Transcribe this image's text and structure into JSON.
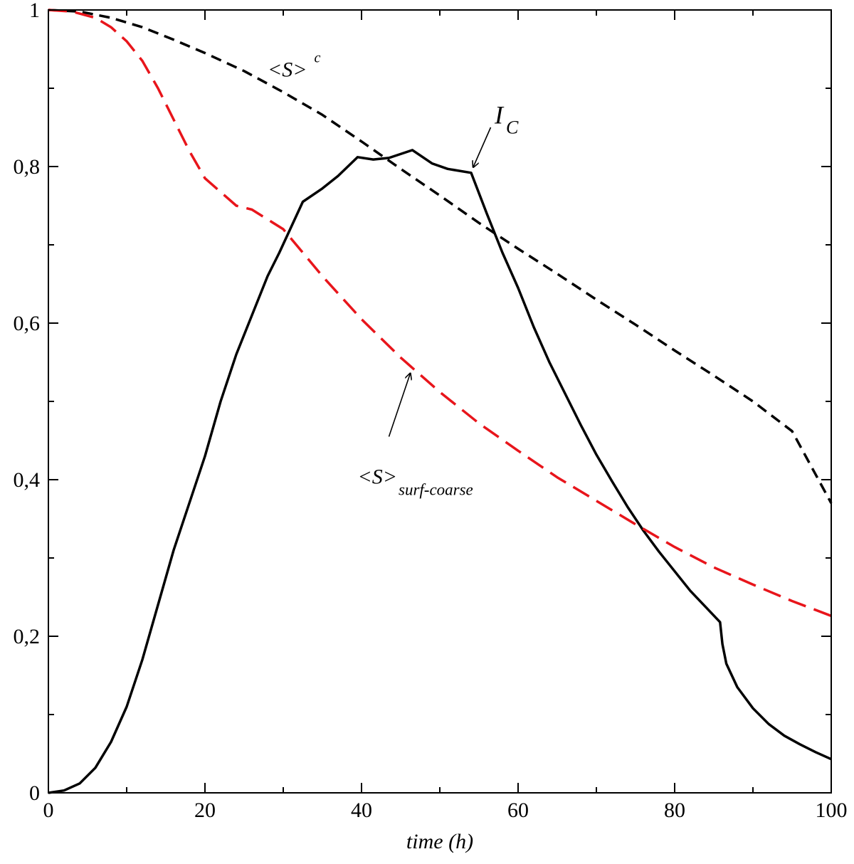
{
  "chart_data": {
    "type": "line",
    "xlabel": "time (h)",
    "ylabel": "",
    "xlim": [
      0,
      100
    ],
    "ylim": [
      0,
      1
    ],
    "grid": false,
    "x_ticks": [
      {
        "value": 0,
        "label": "0"
      },
      {
        "value": 20,
        "label": "20"
      },
      {
        "value": 40,
        "label": "40"
      },
      {
        "value": 60,
        "label": "60"
      },
      {
        "value": 80,
        "label": "80"
      },
      {
        "value": 100,
        "label": "100"
      }
    ],
    "x_minor_ticks": [
      10,
      30,
      50,
      70,
      90
    ],
    "y_ticks": [
      {
        "value": 0,
        "label": "0"
      },
      {
        "value": 0.2,
        "label": "0,2"
      },
      {
        "value": 0.4,
        "label": "0,4"
      },
      {
        "value": 0.6,
        "label": "0,6"
      },
      {
        "value": 0.8,
        "label": "0,8"
      },
      {
        "value": 1,
        "label": "1"
      }
    ],
    "y_minor_ticks": [
      0.1,
      0.3,
      0.5,
      0.7,
      0.9
    ],
    "series": [
      {
        "key": "ic",
        "color": "#000000",
        "style": "solid",
        "points": [
          [
            0,
            0.0
          ],
          [
            2,
            0.003
          ],
          [
            4,
            0.012
          ],
          [
            6,
            0.032
          ],
          [
            8,
            0.065
          ],
          [
            10,
            0.11
          ],
          [
            12,
            0.17
          ],
          [
            14,
            0.24
          ],
          [
            16,
            0.31
          ],
          [
            18,
            0.37
          ],
          [
            20,
            0.43
          ],
          [
            22,
            0.5
          ],
          [
            24,
            0.56
          ],
          [
            26,
            0.61
          ],
          [
            28,
            0.66
          ],
          [
            29.5,
            0.69
          ],
          [
            32.5,
            0.755
          ],
          [
            35,
            0.772
          ],
          [
            37,
            0.788
          ],
          [
            39.5,
            0.812
          ],
          [
            41.5,
            0.809
          ],
          [
            43.5,
            0.811
          ],
          [
            46.5,
            0.821
          ],
          [
            49,
            0.804
          ],
          [
            51,
            0.797
          ],
          [
            54,
            0.792
          ],
          [
            56,
            0.74
          ],
          [
            58,
            0.69
          ],
          [
            60,
            0.645
          ],
          [
            62,
            0.595
          ],
          [
            64,
            0.55
          ],
          [
            66,
            0.51
          ],
          [
            68,
            0.47
          ],
          [
            70,
            0.432
          ],
          [
            72,
            0.398
          ],
          [
            74,
            0.365
          ],
          [
            76,
            0.335
          ],
          [
            78,
            0.308
          ],
          [
            80,
            0.283
          ],
          [
            82,
            0.258
          ],
          [
            84,
            0.237
          ],
          [
            85.8,
            0.218
          ],
          [
            86.1,
            0.19
          ],
          [
            86.6,
            0.165
          ],
          [
            88,
            0.135
          ],
          [
            90,
            0.108
          ],
          [
            92,
            0.088
          ],
          [
            94,
            0.073
          ],
          [
            96,
            0.062
          ],
          [
            98,
            0.052
          ],
          [
            100,
            0.043
          ]
        ]
      },
      {
        "key": "s_c",
        "color": "#000000",
        "style": "dashed",
        "points": [
          [
            0,
            1.0
          ],
          [
            4,
            0.998
          ],
          [
            8,
            0.99
          ],
          [
            12,
            0.978
          ],
          [
            16,
            0.962
          ],
          [
            20,
            0.945
          ],
          [
            25,
            0.922
          ],
          [
            30,
            0.895
          ],
          [
            35,
            0.866
          ],
          [
            40,
            0.832
          ],
          [
            45,
            0.797
          ],
          [
            50,
            0.763
          ],
          [
            55,
            0.728
          ],
          [
            60,
            0.695
          ],
          [
            65,
            0.663
          ],
          [
            70,
            0.63
          ],
          [
            75,
            0.598
          ],
          [
            80,
            0.565
          ],
          [
            85,
            0.533
          ],
          [
            90,
            0.5
          ],
          [
            95,
            0.462
          ],
          [
            100,
            0.37
          ]
        ]
      },
      {
        "key": "s_surf",
        "color": "#e8151b",
        "style": "dashed",
        "points": [
          [
            0,
            1.0
          ],
          [
            3,
            0.998
          ],
          [
            6,
            0.99
          ],
          [
            8,
            0.978
          ],
          [
            10,
            0.96
          ],
          [
            12,
            0.935
          ],
          [
            14,
            0.9
          ],
          [
            16,
            0.86
          ],
          [
            18,
            0.82
          ],
          [
            20,
            0.785
          ],
          [
            24,
            0.75
          ],
          [
            26,
            0.745
          ],
          [
            30,
            0.72
          ],
          [
            35,
            0.66
          ],
          [
            40,
            0.605
          ],
          [
            45,
            0.556
          ],
          [
            50,
            0.512
          ],
          [
            55,
            0.472
          ],
          [
            60,
            0.437
          ],
          [
            65,
            0.403
          ],
          [
            70,
            0.373
          ],
          [
            75,
            0.343
          ],
          [
            80,
            0.314
          ],
          [
            85,
            0.288
          ],
          [
            90,
            0.266
          ],
          [
            95,
            0.245
          ],
          [
            100,
            0.226
          ]
        ]
      }
    ],
    "annotations": {
      "s_c": {
        "main": "<S>",
        "sup": "c"
      },
      "ic": {
        "main": "I",
        "sub": "C"
      },
      "s_surf": {
        "main": "<S>",
        "sub": "surf-coarse"
      }
    },
    "arrows": [
      {
        "from": [
          56.5,
          0.85
        ],
        "to": [
          54.3,
          0.8
        ]
      },
      {
        "from": [
          43.5,
          0.455
        ],
        "to": [
          46.2,
          0.535
        ]
      }
    ]
  }
}
